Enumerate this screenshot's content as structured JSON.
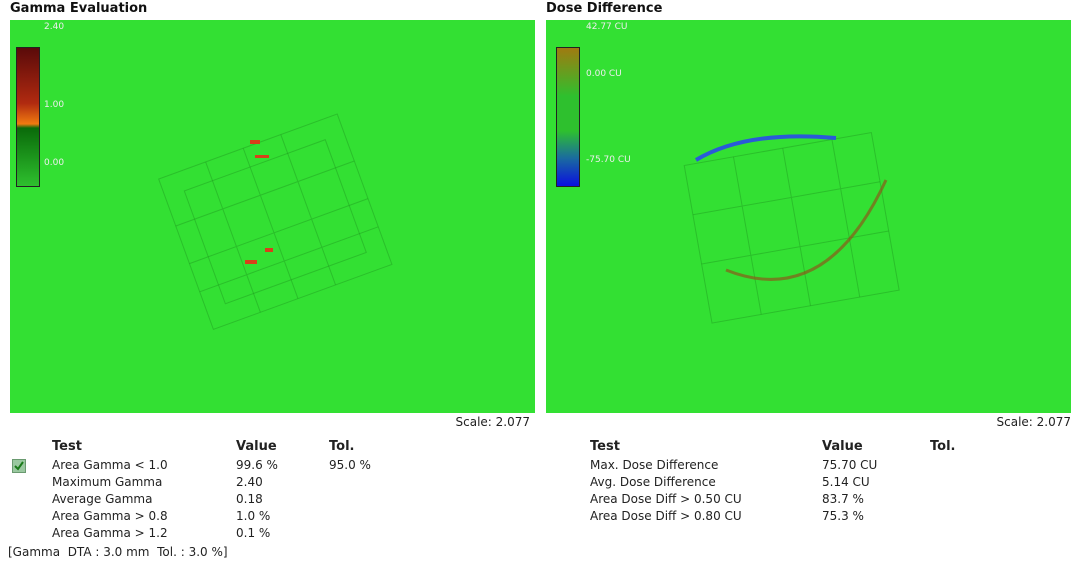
{
  "panels": [
    {
      "title": "Gamma Evaluation",
      "colorbar": [
        "2.40",
        "1.00",
        "0.00"
      ],
      "scale": "Scale: 2.077",
      "table": {
        "header": [
          "Test",
          "Value",
          "Tol."
        ],
        "rows": [
          [
            "Area Gamma < 1.0",
            "99.6 %",
            "95.0 %"
          ],
          [
            "Maximum Gamma",
            "2.40"
          ],
          [
            "Average Gamma",
            "0.18"
          ],
          [
            "Area Gamma > 0.8",
            "1.0 %"
          ],
          [
            "Area Gamma > 1.2",
            "0.1 %"
          ]
        ]
      }
    },
    {
      "title": "Dose Difference",
      "colorbar": [
        "42.77 CU",
        "0.00 CU",
        "-75.70 CU"
      ],
      "scale": "Scale: 2.077",
      "table": {
        "header": [
          "Test",
          "Value",
          "Tol."
        ],
        "rows": [
          [
            "Max. Dose Difference",
            "75.70 CU"
          ],
          [
            "Avg. Dose Difference",
            "5.14 CU"
          ],
          [
            "Area Dose Diff > 0.50 CU",
            "83.7 %"
          ],
          [
            "Area Dose Diff > 0.80 CU",
            "75.3 %"
          ]
        ]
      }
    }
  ],
  "footnote": "[Gamma  DTA : 3.0 mm  Tol. : 3.0 %]"
}
